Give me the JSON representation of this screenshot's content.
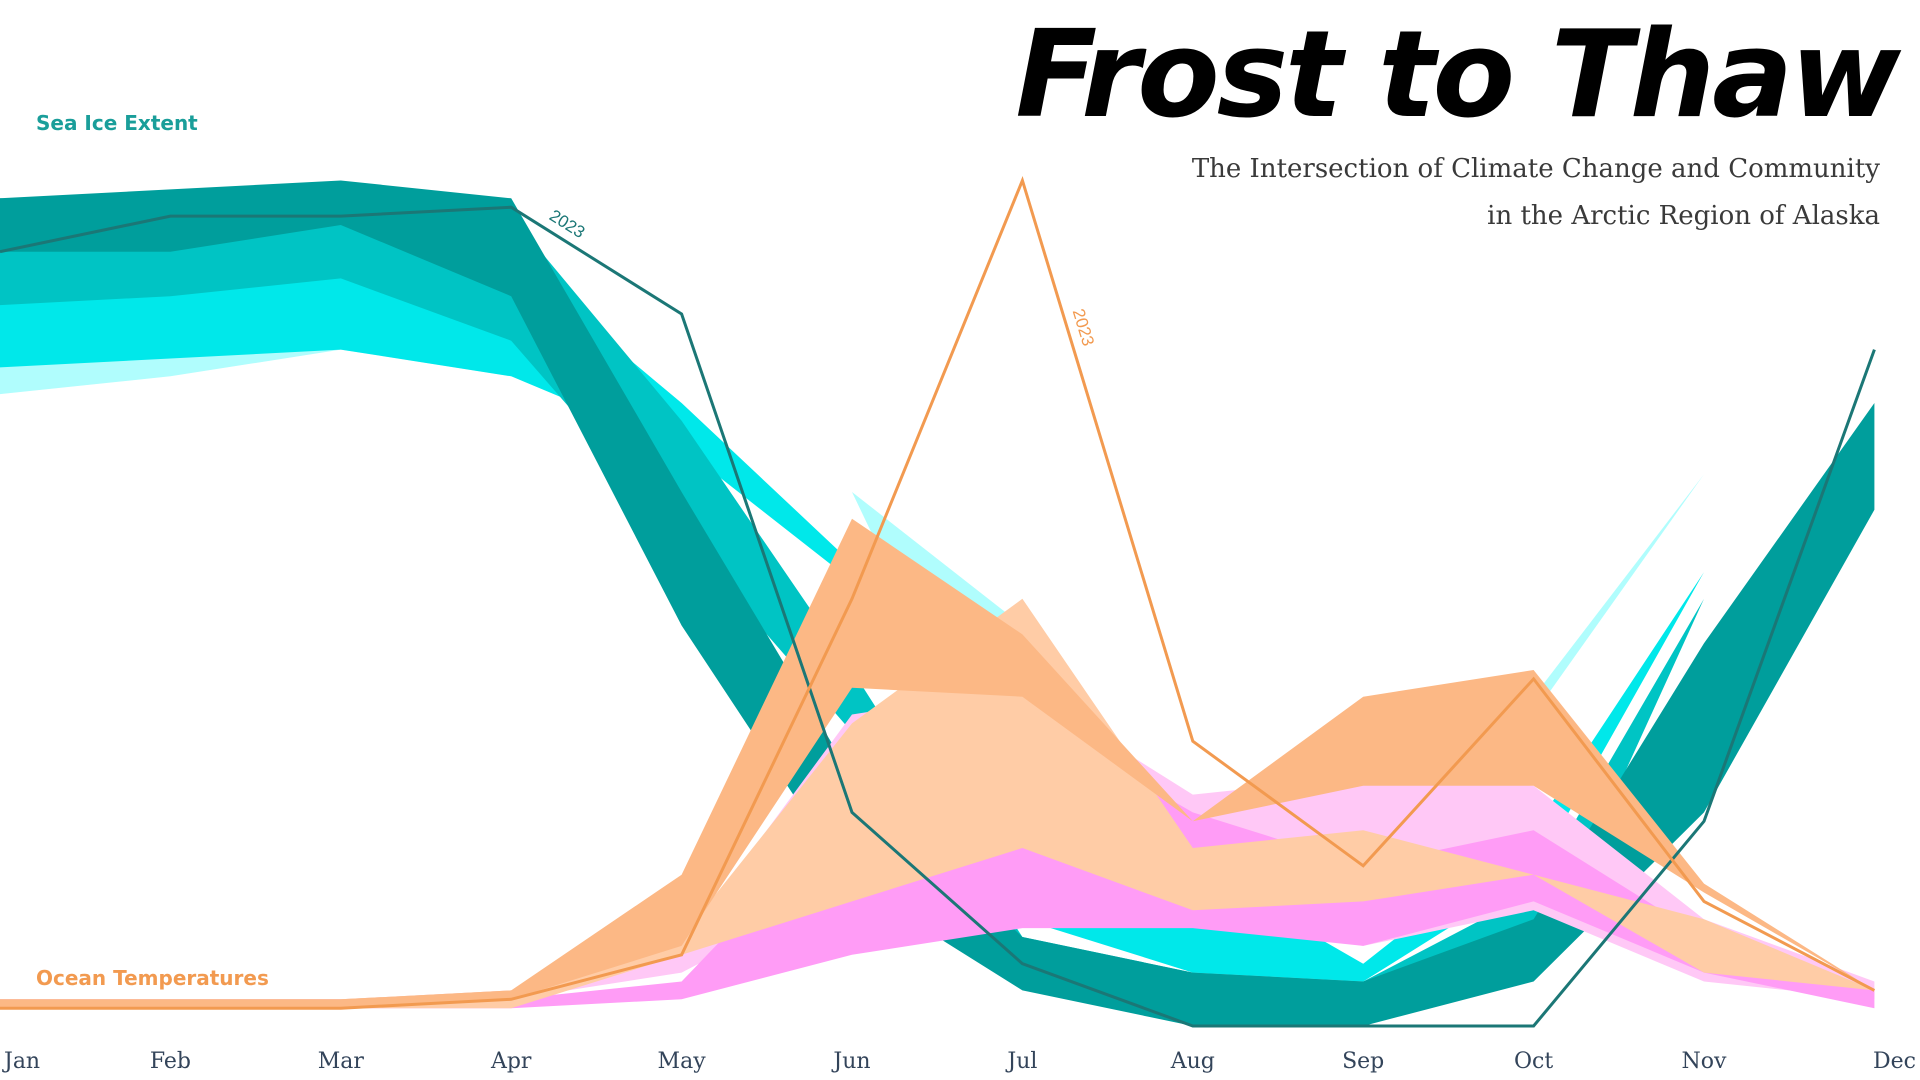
{
  "title": "Frost to Thaw",
  "subtitle": [
    "The Intersection of Climate Change and Community",
    "in the Arctic Region of Alaska"
  ],
  "colors": {
    "ice_label": "#1a9e9a",
    "temp_label": "#f29a50"
  },
  "chart_data": [
    {
      "type": "area",
      "name": "Sea Ice Extent",
      "categories": [
        "Jan",
        "Feb",
        "Mar",
        "Apr",
        "May",
        "Jun",
        "Jul",
        "Aug",
        "Sep",
        "Oct",
        "Nov",
        "Dec"
      ],
      "ylim": [
        0,
        100
      ],
      "bands": [
        {
          "color": "#b0fdfd",
          "upper": [
            85,
            83,
            83,
            85,
            68,
            60,
            45,
            22,
            11,
            37,
            62,
            78
          ],
          "lower": [
            71,
            73,
            76,
            73,
            68,
            60,
            20,
            12,
            10,
            35,
            62,
            78
          ]
        },
        {
          "color": "#00e8ea",
          "upper": [
            85,
            84,
            86,
            86,
            70,
            52,
            38,
            18,
            7,
            22,
            51,
            78
          ],
          "lower": [
            74,
            75,
            76,
            73,
            65,
            50,
            12,
            6,
            5,
            17,
            51,
            78
          ]
        },
        {
          "color": "#00c4c4",
          "upper": [
            93,
            92,
            93,
            91,
            68,
            40,
            10,
            6,
            5,
            15,
            48,
            78
          ],
          "lower": [
            81,
            82,
            84,
            77,
            55,
            33,
            8,
            5,
            3,
            6,
            48,
            78
          ]
        },
        {
          "color": "#009e9c",
          "upper": [
            93,
            94,
            95,
            93,
            60,
            28,
            10,
            6,
            5,
            12,
            43,
            70
          ],
          "lower": [
            87,
            87,
            90,
            82,
            45,
            16,
            4,
            0,
            0,
            5,
            24,
            58
          ]
        }
      ],
      "line_2023": {
        "label": "2023",
        "color": "#1b7776",
        "values": [
          87,
          91,
          91,
          92,
          80,
          24,
          7,
          0,
          0,
          0,
          23,
          76
        ]
      }
    },
    {
      "type": "area",
      "name": "Ocean Temperatures",
      "categories": [
        "Jan",
        "Feb",
        "Mar",
        "Apr",
        "May",
        "Jun",
        "Jul",
        "Aug",
        "Sep",
        "Oct",
        "Nov",
        "Dec"
      ],
      "ylim": [
        0,
        100
      ],
      "bands": [
        {
          "color": "#ffc8f6",
          "upper": [
            3,
            3,
            3,
            4,
            9,
            35,
            38,
            26,
            28,
            27,
            12,
            5
          ],
          "lower": [
            2,
            2,
            2,
            3,
            6,
            16,
            22,
            12,
            9,
            13,
            5,
            3
          ]
        },
        {
          "color": "#ff9cf6",
          "upper": [
            3,
            3,
            3,
            3,
            5,
            25,
            35,
            24,
            18,
            22,
            10,
            4
          ],
          "lower": [
            2,
            2,
            2,
            2,
            3,
            8,
            11,
            11,
            9,
            14,
            6,
            2
          ]
        },
        {
          "color": "#ffcca6",
          "upper": [
            3,
            3,
            3,
            4,
            10,
            34,
            48,
            20,
            22,
            17,
            12,
            4
          ],
          "lower": [
            2,
            2,
            2,
            2,
            8,
            14,
            20,
            13,
            14,
            17,
            6,
            4
          ]
        },
        {
          "color": "#fcb885",
          "upper": [
            3,
            3,
            3,
            4,
            17,
            57,
            44,
            23,
            37,
            40,
            16,
            4
          ],
          "lower": [
            2,
            2,
            2,
            3,
            9,
            38,
            37,
            23,
            27,
            27,
            15,
            4
          ]
        }
      ],
      "line_2023": {
        "label": "2023",
        "color": "#f29a50",
        "values": [
          2,
          2,
          2,
          3,
          8,
          48,
          95,
          32,
          18,
          39,
          14,
          4
        ]
      }
    }
  ]
}
